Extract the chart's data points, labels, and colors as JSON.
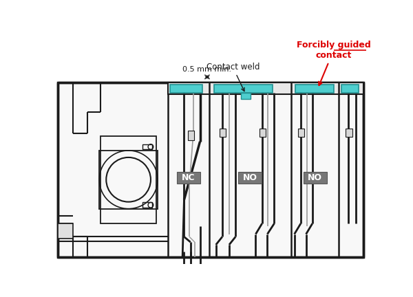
{
  "bg_color": "#ffffff",
  "dc": "#1a1a1a",
  "gc": "#999999",
  "cc": "#4ecece",
  "cc_edge": "#209090",
  "label_bg": "#777777",
  "label_text": "#ffffff",
  "arrow_red": "#dd0000",
  "text_05": "0.5 mm min.",
  "text_cw": "Contact weld",
  "text_fg": "Forcibly guided\ncontact",
  "text_nc": "NC",
  "text_no": "NO"
}
